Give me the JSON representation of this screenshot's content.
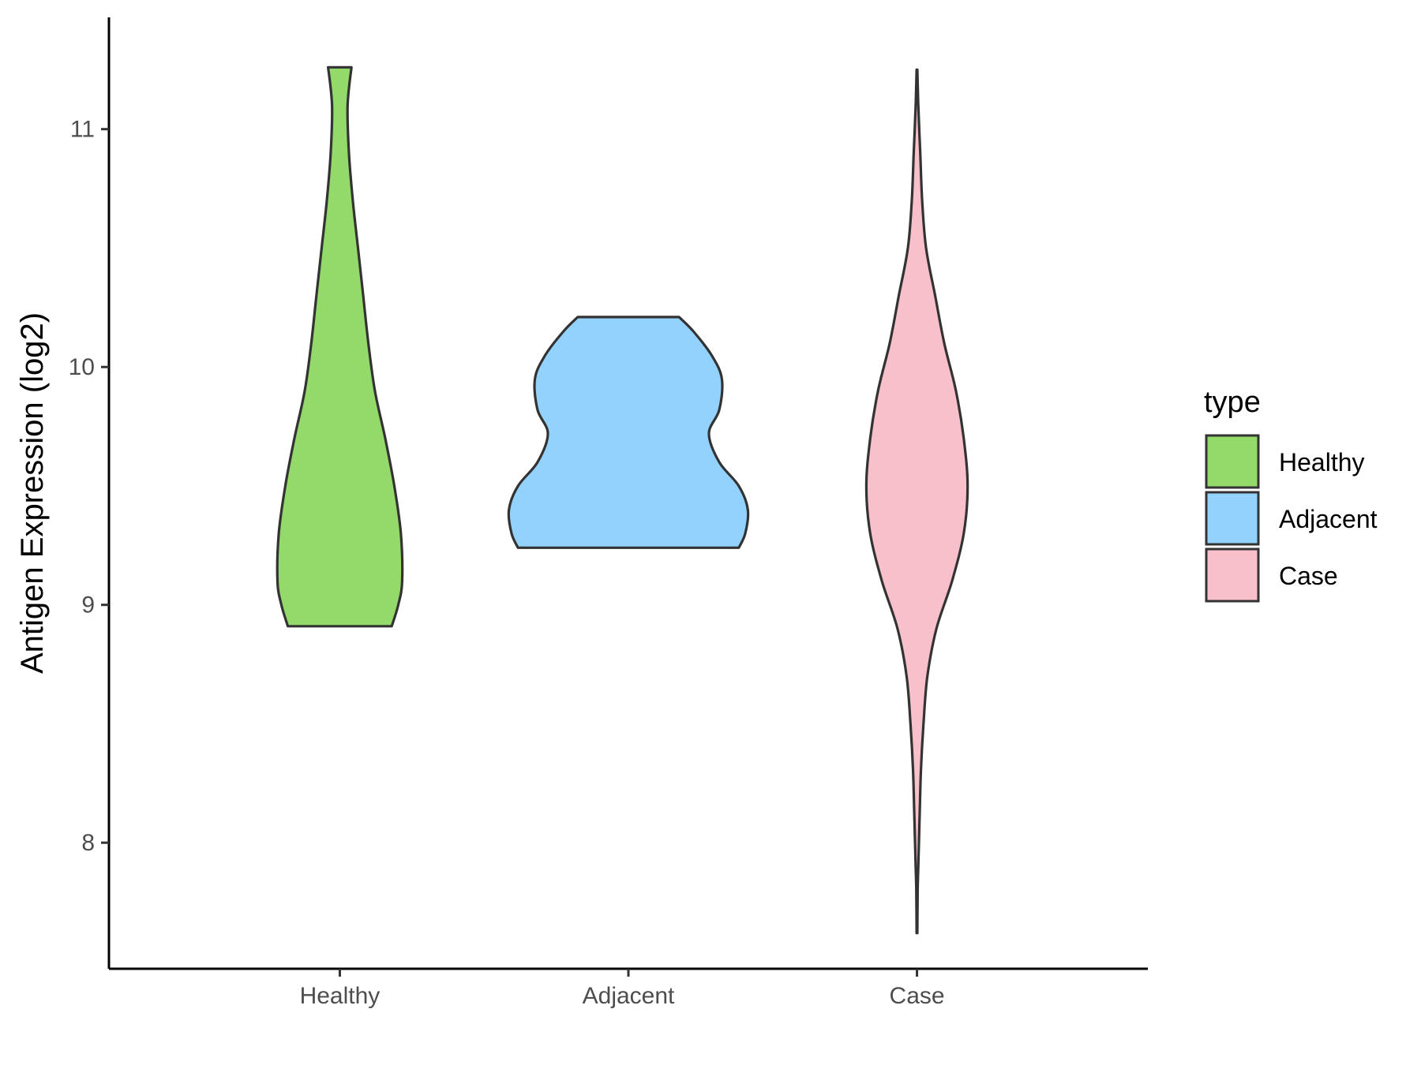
{
  "chart_data": {
    "type": "violin",
    "title": "",
    "xlabel": "",
    "ylabel": "Antigen Expression (log2)",
    "ylim": [
      7.47,
      11.47
    ],
    "y_ticks": [
      8,
      9,
      10,
      11
    ],
    "y_tick_labels": [
      "8",
      "9",
      "10",
      "11"
    ],
    "categories": [
      "Healthy",
      "Adjacent",
      "Case"
    ],
    "grid": false,
    "legend": {
      "title": "type",
      "placement": "right",
      "entries": [
        "Healthy",
        "Adjacent",
        "Case"
      ]
    },
    "series": [
      {
        "category": "Healthy",
        "color": "#93DA6A",
        "min": 8.91,
        "max": 11.26,
        "profile": [
          [
            8.91,
            0.4
          ],
          [
            9.0,
            0.45
          ],
          [
            9.1,
            0.48
          ],
          [
            9.3,
            0.47
          ],
          [
            9.5,
            0.42
          ],
          [
            9.7,
            0.35
          ],
          [
            9.9,
            0.27
          ],
          [
            10.1,
            0.22
          ],
          [
            10.3,
            0.18
          ],
          [
            10.5,
            0.14
          ],
          [
            10.7,
            0.1
          ],
          [
            10.9,
            0.07
          ],
          [
            11.1,
            0.06
          ],
          [
            11.26,
            0.09
          ]
        ]
      },
      {
        "category": "Adjacent",
        "color": "#93D2FC",
        "min": 9.24,
        "max": 10.21,
        "profile": [
          [
            9.24,
            0.85
          ],
          [
            9.3,
            0.9
          ],
          [
            9.4,
            0.92
          ],
          [
            9.5,
            0.85
          ],
          [
            9.6,
            0.7
          ],
          [
            9.72,
            0.62
          ],
          [
            9.82,
            0.7
          ],
          [
            9.95,
            0.72
          ],
          [
            10.05,
            0.64
          ],
          [
            10.15,
            0.5
          ],
          [
            10.21,
            0.39
          ]
        ]
      },
      {
        "category": "Case",
        "color": "#F8C0CB",
        "min": 7.62,
        "max": 11.25,
        "profile": [
          [
            7.62,
            0.003
          ],
          [
            7.8,
            0.005
          ],
          [
            7.9,
            0.01
          ],
          [
            8.1,
            0.02
          ],
          [
            8.3,
            0.03
          ],
          [
            8.5,
            0.05
          ],
          [
            8.7,
            0.08
          ],
          [
            8.9,
            0.15
          ],
          [
            9.1,
            0.27
          ],
          [
            9.3,
            0.36
          ],
          [
            9.5,
            0.39
          ],
          [
            9.7,
            0.36
          ],
          [
            9.9,
            0.3
          ],
          [
            10.1,
            0.21
          ],
          [
            10.3,
            0.14
          ],
          [
            10.5,
            0.07
          ],
          [
            10.7,
            0.04
          ],
          [
            10.9,
            0.025
          ],
          [
            11.1,
            0.01
          ],
          [
            11.25,
            0.003
          ]
        ]
      }
    ]
  }
}
